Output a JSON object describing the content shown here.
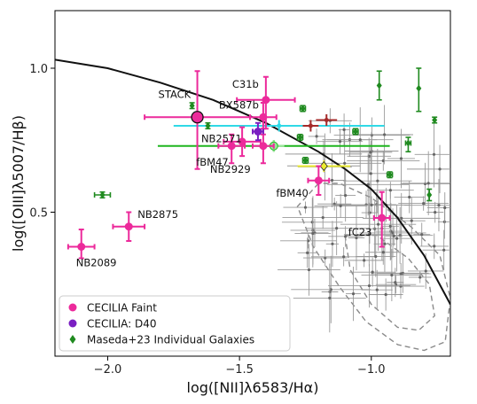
{
  "chart_data": {
    "type": "scatter",
    "title": "",
    "xlabel": "log([NII]λ6583/Hα)",
    "ylabel": "log([OIII]λ5007/Hβ)",
    "xlim": [
      -2.2,
      -0.7
    ],
    "ylim": [
      0.0,
      1.2
    ],
    "xticks": [
      -2.0,
      -1.5,
      -1.0
    ],
    "xtick_labels": [
      "−2.0",
      "−1.5",
      "−1.0"
    ],
    "yticks": [
      0.5,
      1.0
    ],
    "ytick_labels": [
      "0.5",
      "1.0"
    ],
    "grid": false,
    "legend_position": "lower-left",
    "kauffmann_curve": {
      "x": [
        -2.2,
        -2.0,
        -1.8,
        -1.6,
        -1.4,
        -1.2,
        -1.1,
        -1.0,
        -0.9,
        -0.8,
        -0.7
      ],
      "y": [
        1.03,
        1.0,
        0.95,
        0.89,
        0.81,
        0.71,
        0.65,
        0.58,
        0.48,
        0.35,
        0.18
      ]
    },
    "series": [
      {
        "name": "CECILIA Faint",
        "color": "#ec2a9b",
        "marker": "circle",
        "points": [
          {
            "label": "STACK",
            "x": -1.66,
            "y": 0.83,
            "xerr": 0.2,
            "yerr": [
              0.18,
              0.16
            ],
            "highlight": true
          },
          {
            "label": "C31b",
            "x": -1.4,
            "y": 0.89,
            "xerr": 0.11,
            "yerr": [
              0.1,
              0.08
            ]
          },
          {
            "label": "BX587b",
            "x": -1.41,
            "y": 0.83,
            "xerr": 0.05,
            "yerr": [
              0.06,
              0.05
            ]
          },
          {
            "label": "fBM47",
            "x": -1.53,
            "y": 0.73,
            "xerr": 0.05,
            "yerr": [
              0.06,
              0.04
            ]
          },
          {
            "label": "",
            "x": -1.49,
            "y": 0.745,
            "xerr": 0.07,
            "yerr": [
              0.05,
              0.05
            ]
          },
          {
            "label": "NB2929",
            "x": -1.41,
            "y": 0.73,
            "xerr": 0.04,
            "yerr": [
              0.06,
              0.06
            ]
          },
          {
            "label": "fBM40",
            "x": -1.2,
            "y": 0.61,
            "xerr": 0.04,
            "yerr": [
              0.05,
              0.05
            ]
          },
          {
            "label": "fC23",
            "x": -0.96,
            "y": 0.48,
            "xerr": 0.03,
            "yerr": [
              0.1,
              0.09
            ]
          },
          {
            "label": "NB2875",
            "x": -1.92,
            "y": 0.45,
            "xerr": 0.06,
            "yerr": [
              0.05,
              0.05
            ]
          },
          {
            "label": "NB2089",
            "x": -2.1,
            "y": 0.38,
            "xerr": 0.05,
            "yerr": [
              0.04,
              0.06
            ]
          }
        ]
      },
      {
        "name": "CECILIA: D40",
        "color": "#7a1fc2",
        "marker": "circle",
        "points": [
          {
            "label": "NB2571",
            "x": -1.43,
            "y": 0.78,
            "xerr": 0.02,
            "yerr": [
              0.03,
              0.03
            ]
          }
        ]
      },
      {
        "name": "Maseda+23 Individual Galaxies",
        "color": "#1f8a1f",
        "marker": "diamond",
        "points": [
          {
            "x": -1.68,
            "y": 0.87,
            "xerr": 0.0,
            "yerr": [
              0.01,
              0.01
            ]
          },
          {
            "x": -1.62,
            "y": 0.8,
            "xerr": 0.0,
            "yerr": [
              0.01,
              0.01
            ]
          },
          {
            "x": -2.02,
            "y": 0.56,
            "xerr": 0.03,
            "yerr": [
              0.01,
              0.01
            ]
          },
          {
            "x": -1.26,
            "y": 0.86,
            "xerr": 0.01,
            "yerr": [
              0.01,
              0.01
            ]
          },
          {
            "x": -1.27,
            "y": 0.76,
            "xerr": 0.01,
            "yerr": [
              0.01,
              0.01
            ]
          },
          {
            "x": -1.25,
            "y": 0.68,
            "xerr": 0.01,
            "yerr": [
              0.01,
              0.01
            ]
          },
          {
            "x": -1.06,
            "y": 0.78,
            "xerr": 0.01,
            "yerr": [
              0.01,
              0.01
            ]
          },
          {
            "x": -0.93,
            "y": 0.63,
            "xerr": 0.01,
            "yerr": [
              0.01,
              0.01
            ]
          },
          {
            "x": -0.97,
            "y": 0.94,
            "xerr": 0.0,
            "yerr": [
              0.05,
              0.05
            ]
          },
          {
            "x": -0.82,
            "y": 0.93,
            "xerr": 0.0,
            "yerr": [
              0.08,
              0.07
            ]
          },
          {
            "x": -0.86,
            "y": 0.74,
            "xerr": 0.01,
            "yerr": [
              0.03,
              0.02
            ]
          },
          {
            "x": -0.76,
            "y": 0.82,
            "xerr": 0.0,
            "yerr": [
              0.01,
              0.01
            ]
          },
          {
            "x": -0.78,
            "y": 0.56,
            "xerr": 0.0,
            "yerr": [
              0.02,
              0.02
            ]
          }
        ]
      }
    ],
    "extra_points": [
      {
        "x": -1.35,
        "y": 0.8,
        "xerr": 0.4,
        "color": "#2fd9e6"
      },
      {
        "x": -1.37,
        "y": 0.73,
        "xerr": 0.44,
        "color": "#1fb51f"
      },
      {
        "x": -1.37,
        "y": 0.73,
        "xerr": 0.04,
        "color": "#9be89b",
        "hollow": true
      },
      {
        "x": -1.18,
        "y": 0.66,
        "xerr": 0.1,
        "color": "#ecec30",
        "diamond": true
      },
      {
        "x": -1.17,
        "y": 0.82,
        "xerr": 0.04,
        "color": "#a52a2a"
      },
      {
        "x": -1.23,
        "y": 0.8,
        "xerr": 0.03,
        "color": "#a52a2a"
      }
    ],
    "legend": [
      {
        "label": "CECILIA Faint",
        "color": "#ec2a9b",
        "marker": "circle"
      },
      {
        "label": "CECILIA: D40",
        "color": "#7a1fc2",
        "marker": "circle"
      },
      {
        "label": "Maseda+23 Individual Galaxies",
        "color": "#1f8a1f",
        "marker": "diamond"
      }
    ]
  }
}
